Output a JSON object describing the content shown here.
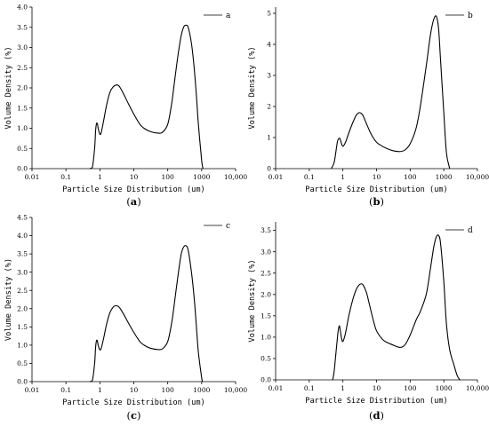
{
  "chart_data": [
    {
      "type": "line",
      "panel_label": {
        "open": "(",
        "letter": "a",
        "close": ")"
      },
      "xlabel": "Particle Size Distribution (um)",
      "ylabel": "Volume Density (%)",
      "xscale": "log",
      "xlim": [
        0.01,
        10000
      ],
      "ylim": [
        0,
        4.0
      ],
      "xticks": [
        "0.01",
        "0.1",
        "1",
        "10",
        "100",
        "1000",
        "10,000"
      ],
      "yticks": [
        "0.0",
        "0.5",
        "1.0",
        "1.5",
        "2.0",
        "2.5",
        "3.0",
        "3.5",
        "4.0"
      ],
      "legend_position": "top-right",
      "series": [
        {
          "name": "a",
          "x": [
            0.5,
            0.6,
            0.7,
            0.75,
            0.8,
            0.85,
            0.9,
            1.0,
            1.1,
            1.3,
            1.6,
            2.0,
            2.5,
            3.0,
            3.5,
            4.0,
            5.0,
            7.0,
            10,
            15,
            20,
            30,
            50,
            70,
            100,
            130,
            150,
            200,
            250,
            300,
            350,
            400,
            500,
            600,
            700,
            800,
            1000,
            1100
          ],
          "y": [
            0,
            0.03,
            0.5,
            0.95,
            1.12,
            1.1,
            0.98,
            0.85,
            0.9,
            1.2,
            1.6,
            1.9,
            2.03,
            2.07,
            2.06,
            2.0,
            1.85,
            1.6,
            1.35,
            1.1,
            1.0,
            0.92,
            0.88,
            0.9,
            1.1,
            1.6,
            2.0,
            2.8,
            3.3,
            3.52,
            3.55,
            3.5,
            3.1,
            2.5,
            1.8,
            1.1,
            0.2,
            0
          ]
        }
      ]
    },
    {
      "type": "line",
      "panel_label": {
        "open": "(",
        "letter": "b",
        "close": ")"
      },
      "xlabel": "Particle Size Distribution (um)",
      "ylabel": "Volume Density (%)",
      "xscale": "log",
      "xlim": [
        0.01,
        10000
      ],
      "ylim": [
        0,
        5.2
      ],
      "xticks": [
        "0.01",
        "0.1",
        "1",
        "10",
        "100",
        "1000",
        "10,000"
      ],
      "yticks": [
        "0",
        "1",
        "2",
        "3",
        "4",
        "5"
      ],
      "legend_position": "top-right",
      "series": [
        {
          "name": "b",
          "x": [
            0.45,
            0.55,
            0.65,
            0.7,
            0.8,
            0.9,
            1.0,
            1.2,
            1.5,
            2.0,
            2.5,
            3.0,
            3.5,
            4.0,
            5.0,
            7.0,
            10,
            15,
            20,
            30,
            50,
            70,
            100,
            150,
            200,
            300,
            400,
            500,
            600,
            700,
            800,
            1000,
            1200,
            1500
          ],
          "y": [
            0,
            0.2,
            0.7,
            0.9,
            0.98,
            0.82,
            0.72,
            0.85,
            1.15,
            1.5,
            1.72,
            1.8,
            1.78,
            1.7,
            1.45,
            1.1,
            0.85,
            0.72,
            0.65,
            0.58,
            0.55,
            0.6,
            0.8,
            1.3,
            2.0,
            3.3,
            4.3,
            4.8,
            4.9,
            4.5,
            3.5,
            1.8,
            0.5,
            0
          ]
        }
      ]
    },
    {
      "type": "line",
      "panel_label": {
        "open": "(",
        "letter": "c",
        "close": ")"
      },
      "xlabel": "Particle Size Distribution (um)",
      "ylabel": "Volume Density (%)",
      "xscale": "log",
      "xlim": [
        0.01,
        10000
      ],
      "ylim": [
        0,
        4.5
      ],
      "xticks": [
        "0.01",
        "0.1",
        "1",
        "10",
        "100",
        "1000",
        "10,000"
      ],
      "yticks": [
        "0.0",
        "0.5",
        "1.0",
        "1.5",
        "2.0",
        "2.5",
        "3.0",
        "3.5",
        "4.0",
        "4.5"
      ],
      "legend_position": "top-right",
      "series": [
        {
          "name": "c",
          "x": [
            0.5,
            0.6,
            0.7,
            0.75,
            0.8,
            0.85,
            0.9,
            1.0,
            1.1,
            1.3,
            1.6,
            2.0,
            2.5,
            3.0,
            3.5,
            4.0,
            5.0,
            7.0,
            10,
            15,
            20,
            30,
            50,
            70,
            100,
            130,
            150,
            200,
            250,
            300,
            350,
            400,
            500,
            600,
            700,
            800,
            1000,
            1050
          ],
          "y": [
            0,
            0.03,
            0.5,
            0.95,
            1.13,
            1.1,
            0.98,
            0.87,
            0.92,
            1.2,
            1.6,
            1.9,
            2.05,
            2.08,
            2.06,
            2.0,
            1.85,
            1.6,
            1.35,
            1.1,
            1.0,
            0.92,
            0.88,
            0.9,
            1.1,
            1.6,
            2.0,
            2.9,
            3.5,
            3.7,
            3.72,
            3.6,
            3.0,
            2.3,
            1.5,
            0.8,
            0.1,
            0
          ]
        }
      ]
    },
    {
      "type": "line",
      "panel_label": {
        "open": "(",
        "letter": "d",
        "close": ")"
      },
      "xlabel": "Particle Size Distribution (um)",
      "ylabel": "Volume Density (%)",
      "xscale": "log",
      "xlim": [
        0.01,
        10000
      ],
      "ylim": [
        0,
        3.7
      ],
      "xticks": [
        "0.01",
        "0.1",
        "1",
        "10",
        "100",
        "1000",
        "10,000"
      ],
      "yticks": [
        "0.0",
        "0.5",
        "1.0",
        "1.5",
        "2.0",
        "2.5",
        "3.0",
        "3.5"
      ],
      "legend_position": "top-right",
      "series": [
        {
          "name": "d",
          "x": [
            0.5,
            0.55,
            0.6,
            0.7,
            0.75,
            0.8,
            0.9,
            1.0,
            1.2,
            1.5,
            2.0,
            2.5,
            3.0,
            3.5,
            4.0,
            5.0,
            6.0,
            8.0,
            10,
            15,
            20,
            30,
            50,
            70,
            100,
            150,
            200,
            300,
            400,
            500,
            600,
            700,
            800,
            1000,
            1200,
            1500,
            2000,
            2500,
            3000
          ],
          "y": [
            0,
            0.2,
            0.5,
            1.05,
            1.22,
            1.25,
            1.0,
            0.9,
            1.1,
            1.5,
            1.9,
            2.12,
            2.22,
            2.25,
            2.22,
            2.05,
            1.8,
            1.4,
            1.15,
            0.95,
            0.88,
            0.82,
            0.76,
            0.82,
            1.05,
            1.4,
            1.6,
            2.0,
            2.6,
            3.1,
            3.35,
            3.38,
            3.2,
            2.3,
            1.3,
            0.7,
            0.35,
            0.1,
            0
          ]
        }
      ]
    }
  ]
}
